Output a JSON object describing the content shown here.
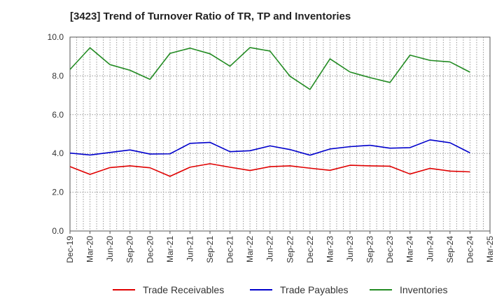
{
  "chart_data": {
    "type": "line",
    "title": "[3423]  Trend of Turnover Ratio of TR, TP and Inventories",
    "xlabel": "",
    "ylabel": "",
    "ylim": [
      0,
      10
    ],
    "yticks": [
      "0.0",
      "2.0",
      "4.0",
      "6.0",
      "8.0",
      "10.0"
    ],
    "x_ticks": [
      "Dec-19",
      "Mar-20",
      "Jun-20",
      "Sep-20",
      "Dec-20",
      "Mar-21",
      "Jun-21",
      "Sep-21",
      "Dec-21",
      "Mar-22",
      "Jun-22",
      "Sep-22",
      "Dec-22",
      "Mar-23",
      "Jun-23",
      "Sep-23",
      "Dec-23",
      "Mar-24",
      "Jun-24",
      "Sep-24",
      "Dec-24",
      "Mar-25"
    ],
    "x_months": [
      "Dec-19",
      "Jan-20",
      "Feb-20",
      "Mar-20",
      "Apr-20",
      "May-20",
      "Jun-20",
      "Jul-20",
      "Aug-20",
      "Sep-20",
      "Oct-20",
      "Nov-20",
      "Dec-20",
      "Jan-21",
      "Feb-21",
      "Mar-21",
      "Apr-21",
      "May-21",
      "Jun-21",
      "Jul-21",
      "Aug-21",
      "Sep-21",
      "Oct-21",
      "Nov-21",
      "Dec-21",
      "Jan-22",
      "Feb-22",
      "Mar-22",
      "Apr-22",
      "May-22",
      "Jun-22",
      "Jul-22",
      "Aug-22",
      "Sep-22",
      "Oct-22",
      "Nov-22",
      "Dec-22",
      "Jan-23",
      "Feb-23",
      "Mar-23",
      "Apr-23",
      "May-23",
      "Jun-23",
      "Jul-23",
      "Aug-23",
      "Sep-23",
      "Oct-23",
      "Nov-23",
      "Dec-23",
      "Jan-24",
      "Feb-24",
      "Mar-24",
      "Apr-24",
      "May-24",
      "Jun-24",
      "Jul-24",
      "Aug-24",
      "Sep-24",
      "Oct-24",
      "Nov-24",
      "Dec-24",
      "Jan-25",
      "Feb-25",
      "Mar-25"
    ],
    "grid": true,
    "legend_position": "bottom",
    "series": [
      {
        "name": "Trade Receivables",
        "color": "#e00000",
        "x": [
          "Dec-19",
          "Mar-20",
          "Jun-20",
          "Sep-20",
          "Dec-20",
          "Mar-21",
          "Jun-21",
          "Sep-21",
          "Dec-21",
          "Mar-22",
          "Jun-22",
          "Sep-22",
          "Dec-22",
          "Mar-23",
          "Jun-23",
          "Sep-23",
          "Dec-23",
          "Mar-24",
          "Jun-24",
          "Sep-24",
          "Dec-24"
        ],
        "values": [
          3.32,
          2.92,
          3.27,
          3.36,
          3.26,
          2.82,
          3.29,
          3.47,
          3.29,
          3.12,
          3.32,
          3.36,
          3.24,
          3.13,
          3.39,
          3.36,
          3.34,
          2.94,
          3.23,
          3.09,
          3.05
        ]
      },
      {
        "name": "Trade Payables",
        "color": "#0000cc",
        "x": [
          "Dec-19",
          "Mar-20",
          "Jun-20",
          "Sep-20",
          "Dec-20",
          "Mar-21",
          "Jun-21",
          "Sep-21",
          "Dec-21",
          "Mar-22",
          "Jun-22",
          "Sep-22",
          "Dec-22",
          "Mar-23",
          "Jun-23",
          "Sep-23",
          "Dec-23",
          "Mar-24",
          "Jun-24",
          "Sep-24",
          "Dec-24"
        ],
        "values": [
          4.02,
          3.92,
          4.05,
          4.18,
          3.97,
          3.98,
          4.52,
          4.57,
          4.09,
          4.14,
          4.39,
          4.2,
          3.91,
          4.23,
          4.35,
          4.42,
          4.27,
          4.3,
          4.7,
          4.55,
          4.03
        ]
      },
      {
        "name": "Inventories",
        "color": "#228b22",
        "x": [
          "Dec-19",
          "Mar-20",
          "Jun-20",
          "Sep-20",
          "Dec-20",
          "Mar-21",
          "Jun-21",
          "Sep-21",
          "Dec-21",
          "Mar-22",
          "Jun-22",
          "Sep-22",
          "Dec-22",
          "Mar-23",
          "Jun-23",
          "Sep-23",
          "Dec-23",
          "Mar-24",
          "Jun-24",
          "Sep-24",
          "Dec-24"
        ],
        "values": [
          8.33,
          9.45,
          8.58,
          8.29,
          7.82,
          9.16,
          9.43,
          9.14,
          8.5,
          9.46,
          9.28,
          7.98,
          7.3,
          8.88,
          8.2,
          7.91,
          7.66,
          9.07,
          8.8,
          8.72,
          8.19
        ]
      }
    ]
  }
}
